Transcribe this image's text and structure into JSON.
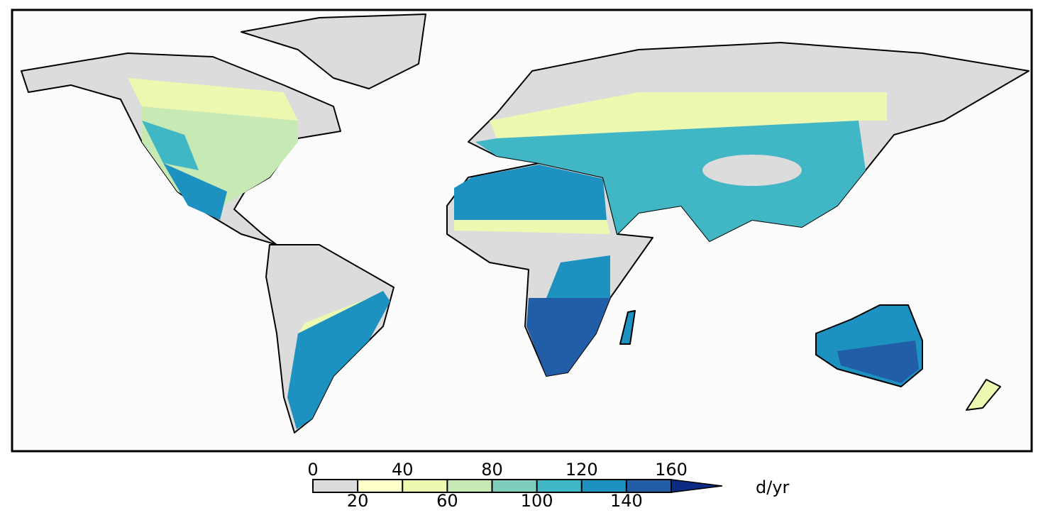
{
  "colorbar": {
    "ticks": [
      0,
      20,
      40,
      60,
      80,
      100,
      120,
      140,
      160
    ],
    "colors": [
      "#dcdcdc",
      "#ffffcc",
      "#edf8b1",
      "#c7e9b4",
      "#7fcdbb",
      "#41b6c4",
      "#1d91c0",
      "#225ea8"
    ],
    "over_color": "#0c2c84",
    "unit": "d/yr"
  }
}
